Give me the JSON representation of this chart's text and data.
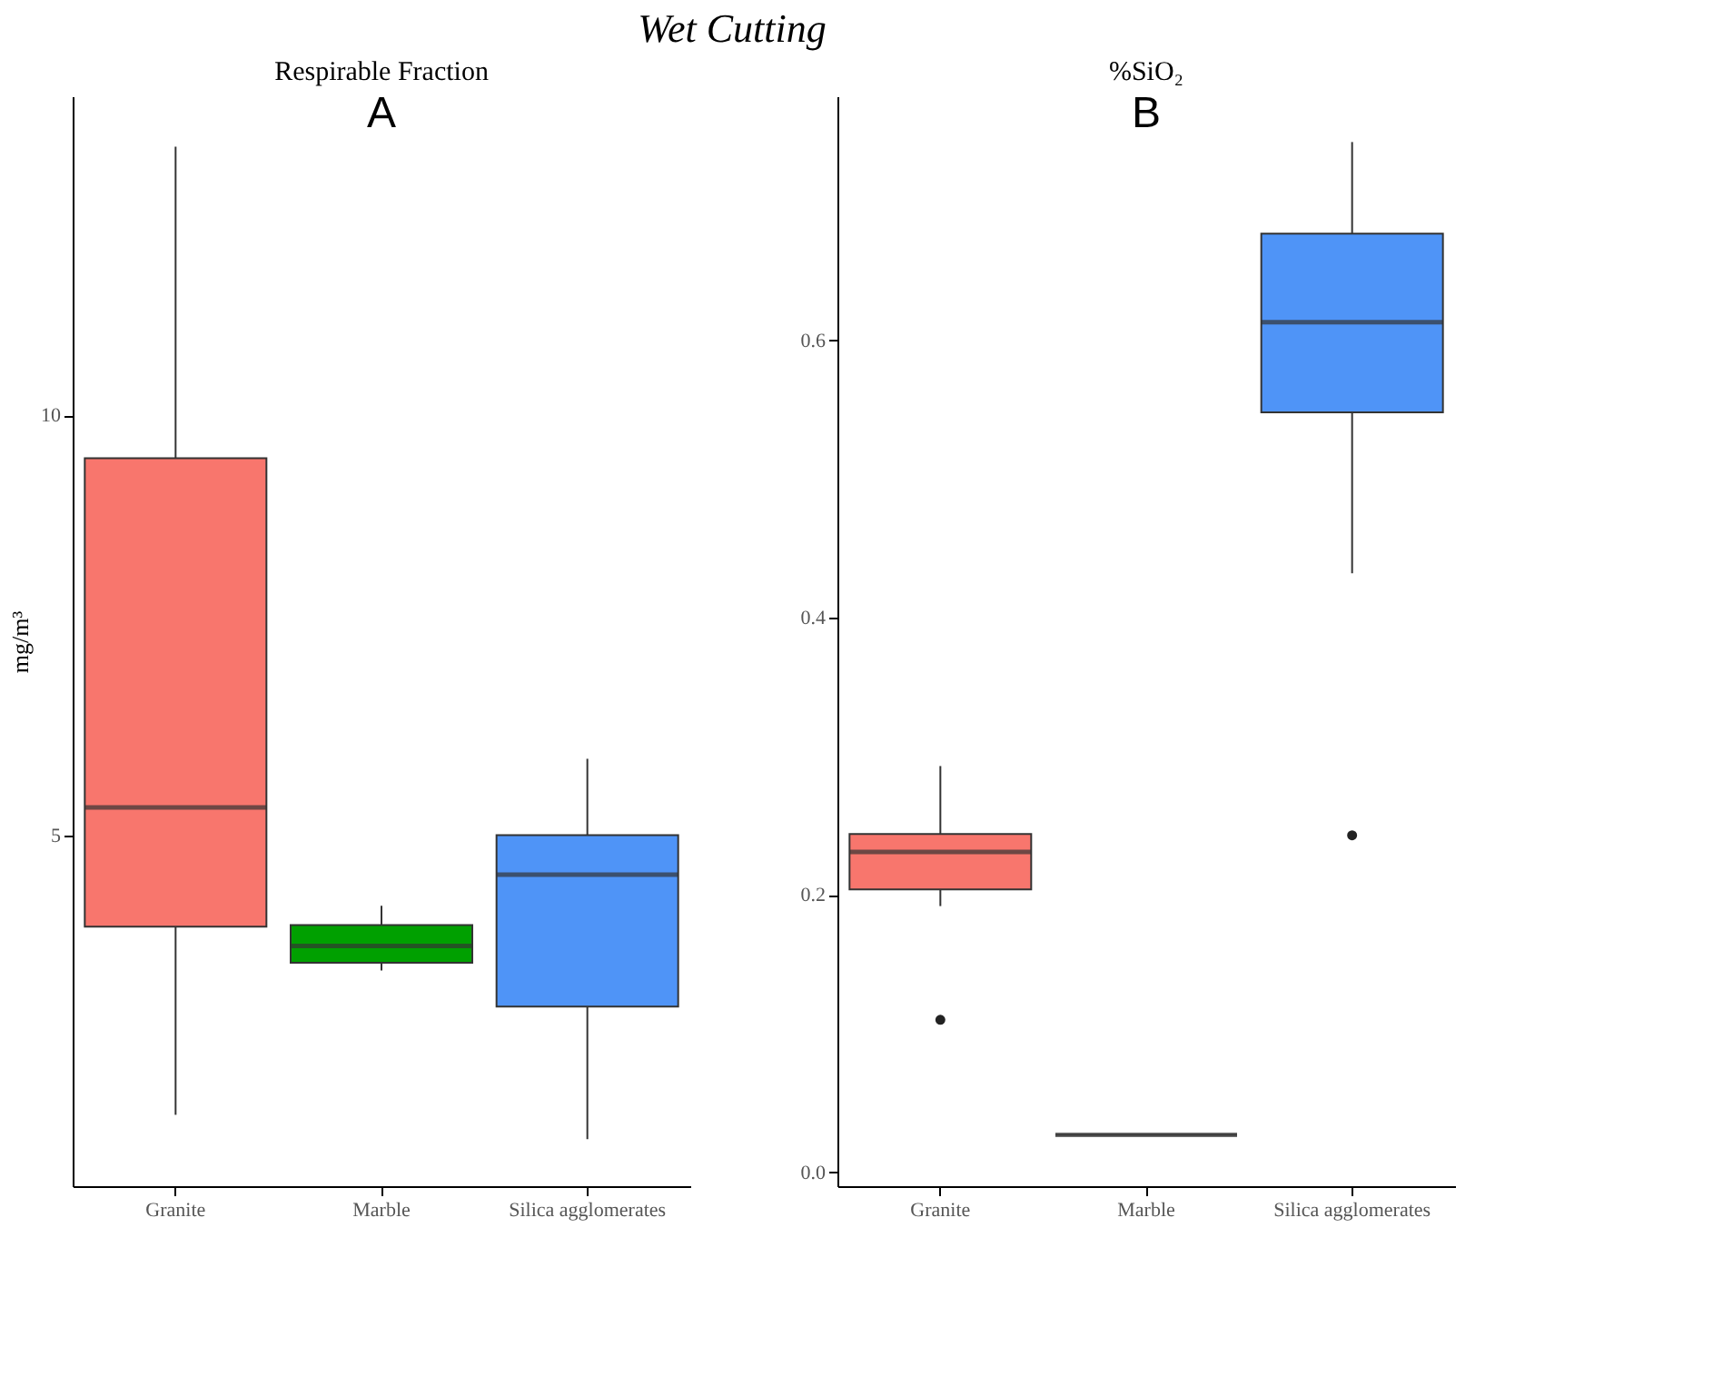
{
  "chart_data": [
    {
      "type": "box",
      "title": "Respirable Fraction",
      "ylabel": "mg/m³",
      "annotations": [
        "Wet Cutting",
        "A"
      ],
      "categories": [
        "Granite",
        "Marble",
        "Silica agglomerates"
      ],
      "colors": [
        "#f8766d",
        "#00a000",
        "#4f94f7"
      ],
      "boxes": [
        {
          "low": 1.67,
          "q1": 3.91,
          "median": 5.33,
          "q3": 9.49,
          "high": 13.2
        },
        {
          "low": 3.39,
          "q1": 3.48,
          "median": 3.68,
          "q3": 3.93,
          "high": 4.16
        },
        {
          "low": 1.38,
          "q1": 2.96,
          "median": 4.53,
          "q3": 5.0,
          "high": 5.91
        }
      ],
      "ylim": [
        0.82,
        13.8
      ],
      "yticks": [
        5,
        10
      ],
      "grid": false,
      "legend": false
    },
    {
      "type": "box",
      "title": "%SiO₂",
      "annotations": [
        "B"
      ],
      "categories": [
        "Granite",
        "Marble",
        "Silica agglomerates"
      ],
      "colors": [
        "#f8766d",
        "#333333",
        "#4f94f7"
      ],
      "boxes": [
        {
          "low": 0.192,
          "q1": 0.204,
          "median": 0.231,
          "q3": 0.244,
          "high": 0.293,
          "outliers": [
            0.11
          ]
        },
        {
          "low": 0.027,
          "q1": 0.027,
          "median": 0.027,
          "q3": 0.027,
          "high": 0.027
        },
        {
          "low": 0.432,
          "q1": 0.548,
          "median": 0.613,
          "q3": 0.677,
          "high": 0.743,
          "outliers": [
            0.243
          ]
        }
      ],
      "ylim": [
        -0.01,
        0.776
      ],
      "yticks": [
        {
          "value": 0,
          "label": "0.0"
        },
        0.2,
        0.4,
        0.6
      ],
      "grid": false,
      "legend": false
    }
  ]
}
